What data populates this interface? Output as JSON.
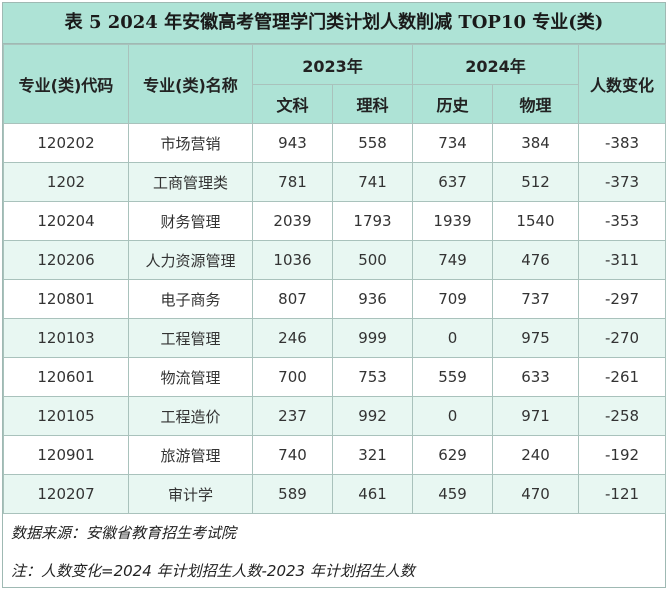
{
  "title": "表 5  2024 年安徽高考管理学门类计划人数削减 TOP10 专业(类)",
  "headers": {
    "code": "专业(类)代码",
    "name": "专业(类)名称",
    "year2023": "2023年",
    "year2024": "2024年",
    "change": "人数变化",
    "wenke": "文科",
    "like": "理科",
    "lishi": "历史",
    "wuli": "物理"
  },
  "rows": [
    {
      "code": "120202",
      "name": "市场营销",
      "wenke": "943",
      "like": "558",
      "lishi": "734",
      "wuli": "384",
      "change": "-383"
    },
    {
      "code": "1202",
      "name": "工商管理类",
      "wenke": "781",
      "like": "741",
      "lishi": "637",
      "wuli": "512",
      "change": "-373"
    },
    {
      "code": "120204",
      "name": "财务管理",
      "wenke": "2039",
      "like": "1793",
      "lishi": "1939",
      "wuli": "1540",
      "change": "-353"
    },
    {
      "code": "120206",
      "name": "人力资源管理",
      "wenke": "1036",
      "like": "500",
      "lishi": "749",
      "wuli": "476",
      "change": "-311"
    },
    {
      "code": "120801",
      "name": "电子商务",
      "wenke": "807",
      "like": "936",
      "lishi": "709",
      "wuli": "737",
      "change": "-297"
    },
    {
      "code": "120103",
      "name": "工程管理",
      "wenke": "246",
      "like": "999",
      "lishi": "0",
      "wuli": "975",
      "change": "-270"
    },
    {
      "code": "120601",
      "name": "物流管理",
      "wenke": "700",
      "like": "753",
      "lishi": "559",
      "wuli": "633",
      "change": "-261"
    },
    {
      "code": "120105",
      "name": "工程造价",
      "wenke": "237",
      "like": "992",
      "lishi": "0",
      "wuli": "971",
      "change": "-258"
    },
    {
      "code": "120901",
      "name": "旅游管理",
      "wenke": "740",
      "like": "321",
      "lishi": "629",
      "wuli": "240",
      "change": "-192"
    },
    {
      "code": "120207",
      "name": "审计学",
      "wenke": "589",
      "like": "461",
      "lishi": "459",
      "wuli": "470",
      "change": "-121"
    }
  ],
  "notes": {
    "source": "数据来源：安徽省教育招生考试院",
    "formula": "注：人数变化=2024 年计划招生人数-2023 年计划招生人数"
  },
  "colors": {
    "header_bg": "#aee3d6",
    "stripe_bg": "#e8f7f2",
    "border": "#a9c2bc"
  }
}
